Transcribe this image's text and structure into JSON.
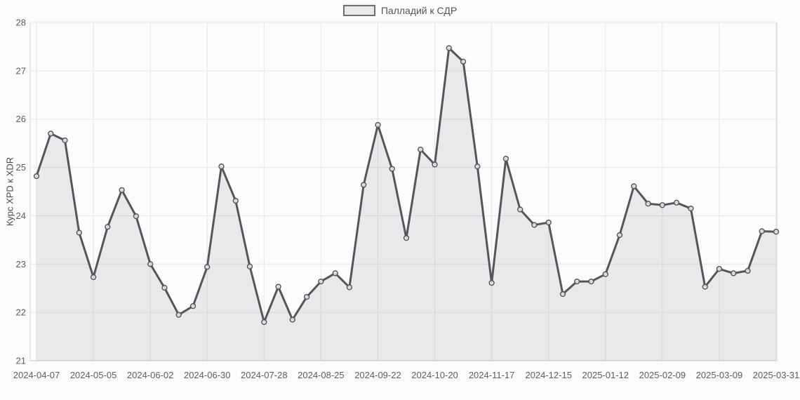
{
  "chart_data": {
    "type": "area",
    "title": "",
    "ylabel": "Курс XPD к XDR",
    "xlabel": "",
    "ylim": [
      21,
      28
    ],
    "yticks": [
      21,
      22,
      23,
      24,
      25,
      26,
      27,
      28
    ],
    "grid": true,
    "legend_position": "top-center",
    "marker": "circle",
    "x": [
      "2024-04-07",
      "2024-04-14",
      "2024-04-21",
      "2024-04-28",
      "2024-05-05",
      "2024-05-12",
      "2024-05-19",
      "2024-05-26",
      "2024-06-02",
      "2024-06-09",
      "2024-06-16",
      "2024-06-23",
      "2024-06-30",
      "2024-07-07",
      "2024-07-14",
      "2024-07-21",
      "2024-07-28",
      "2024-08-04",
      "2024-08-11",
      "2024-08-18",
      "2024-08-25",
      "2024-09-01",
      "2024-09-08",
      "2024-09-15",
      "2024-09-22",
      "2024-09-29",
      "2024-10-06",
      "2024-10-13",
      "2024-10-20",
      "2024-10-27",
      "2024-11-03",
      "2024-11-10",
      "2024-11-17",
      "2024-11-24",
      "2024-12-01",
      "2024-12-08",
      "2024-12-15",
      "2024-12-22",
      "2024-12-29",
      "2025-01-05",
      "2025-01-12",
      "2025-01-19",
      "2025-01-26",
      "2025-02-02",
      "2025-02-09",
      "2025-02-16",
      "2025-02-23",
      "2025-03-02",
      "2025-03-09",
      "2025-03-16",
      "2025-03-23",
      "2025-03-30",
      "2025-03-31"
    ],
    "series": [
      {
        "name": "Палладий к СДР",
        "values": [
          24.82,
          25.7,
          25.56,
          23.65,
          22.73,
          23.77,
          24.53,
          23.99,
          23.0,
          22.51,
          21.95,
          22.13,
          22.94,
          25.02,
          24.31,
          22.95,
          21.8,
          22.53,
          21.85,
          22.32,
          22.64,
          22.81,
          22.52,
          24.64,
          25.88,
          24.97,
          23.54,
          25.37,
          25.06,
          27.47,
          27.19,
          25.02,
          22.61,
          25.18,
          24.13,
          23.81,
          23.86,
          22.38,
          22.64,
          22.64,
          22.79,
          23.6,
          24.61,
          24.25,
          24.22,
          24.27,
          24.15,
          22.53,
          22.9,
          22.81,
          22.86,
          23.68,
          23.67
        ]
      }
    ],
    "x_tick_indices": [
      0,
      4,
      8,
      12,
      16,
      20,
      24,
      28,
      32,
      36,
      40,
      44,
      48,
      52
    ],
    "x_tick_labels": [
      "2024-04-07",
      "2024-05-05",
      "2024-06-02",
      "2024-06-30",
      "2024-07-28",
      "2024-08-25",
      "2024-09-22",
      "2024-10-20",
      "2024-11-17",
      "2024-12-15",
      "2025-01-12",
      "2025-02-09",
      "2025-03-09",
      "2025-03-31"
    ],
    "colors": {
      "line": "#55555d",
      "area": "rgba(110,110,120,0.13)",
      "marker_fill": "#f6f6f7",
      "grid": "#e6e6e6",
      "axis": "#c9c9c9",
      "border": "#d9d9d9",
      "tick_text": "#5d5d61",
      "background": "#fcfcfc"
    }
  }
}
